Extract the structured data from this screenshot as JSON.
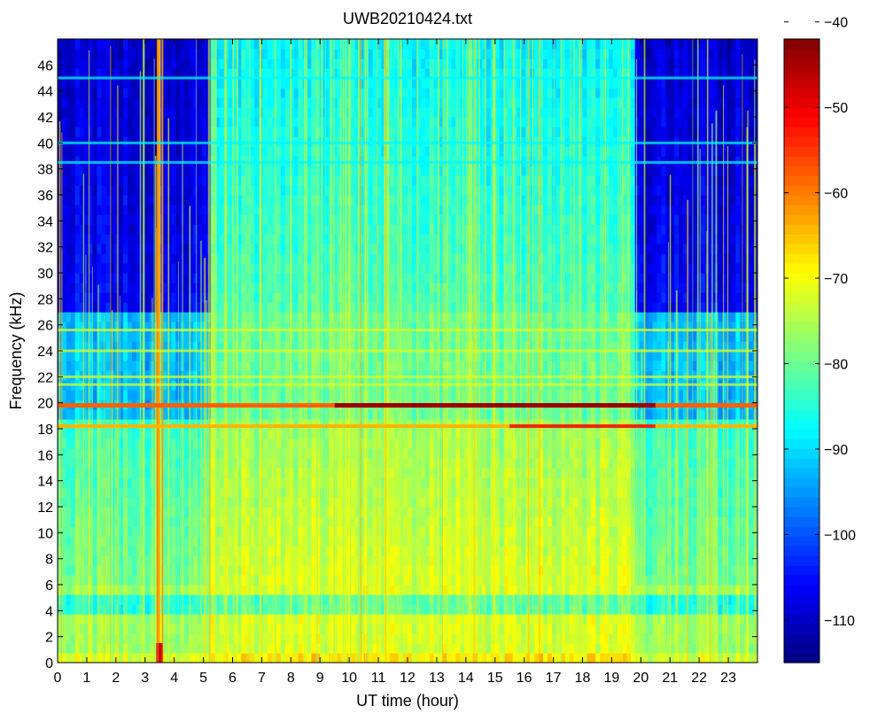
{
  "chart_data": {
    "type": "heatmap",
    "title": "UWB20210424.txt",
    "xlabel": "UT time (hour)",
    "ylabel": "Frequency (kHz)",
    "xlim": [
      0,
      24
    ],
    "ylim": [
      0,
      48
    ],
    "xticks": [
      0,
      1,
      2,
      3,
      4,
      5,
      6,
      7,
      8,
      9,
      10,
      11,
      12,
      13,
      14,
      15,
      16,
      17,
      18,
      19,
      20,
      21,
      22,
      23
    ],
    "yticks": [
      0,
      2,
      4,
      6,
      8,
      10,
      12,
      14,
      16,
      18,
      20,
      22,
      24,
      26,
      28,
      30,
      32,
      34,
      36,
      38,
      40,
      42,
      44,
      46
    ],
    "colorbar": {
      "colormap": "jet",
      "range": [
        -115,
        -42
      ],
      "ticks": [
        -40,
        -50,
        -60,
        -70,
        -80,
        -90,
        -100,
        -110
      ],
      "tick_labels": [
        "−40",
        "−50",
        "−60",
        "−70",
        "−80",
        "−90",
        "−100",
        "−110"
      ]
    },
    "features": {
      "low_frequency_band_kHz": [
        0,
        6
      ],
      "strong_line_kHz": 19.8,
      "strong_line_peak_level": -44,
      "secondary_line_kHz": 18.2,
      "secondary_line_peak_level": -50,
      "narrowband_lines_kHz": [
        21.4,
        22.0,
        24.0,
        25.6,
        38.5,
        40.0,
        45.0
      ],
      "quiet_high_band_hours": [
        [
          0,
          5.2
        ],
        [
          19.8,
          24
        ]
      ],
      "broadband_interference_hours": [
        3.3,
        3.6
      ],
      "colors_low_to_high": [
        "#00008f",
        "#0000ff",
        "#00ffff",
        "#ffff00",
        "#ff0000",
        "#800000"
      ]
    }
  }
}
